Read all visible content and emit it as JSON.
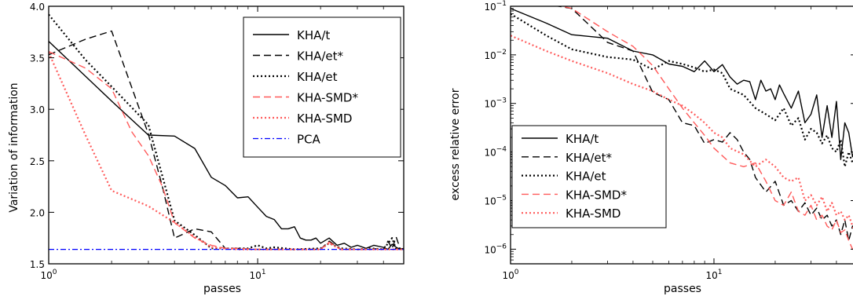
{
  "chart_data": [
    {
      "type": "line",
      "xscale": "log",
      "xlim": [
        1,
        50
      ],
      "ylim": [
        1.5,
        4.0
      ],
      "xlabel": "passes",
      "ylabel": "Variation of information",
      "xticks": [
        {
          "value": 1,
          "base": "10",
          "exp": "0"
        },
        {
          "value": 10,
          "base": "10",
          "exp": "1"
        }
      ],
      "yticks": [
        {
          "value": 1.5,
          "label": "1.5"
        },
        {
          "value": 2.0,
          "label": "2.0"
        },
        {
          "value": 2.5,
          "label": "2.5"
        },
        {
          "value": 3.0,
          "label": "3.0"
        },
        {
          "value": 3.5,
          "label": "3.5"
        },
        {
          "value": 4.0,
          "label": "4.0"
        }
      ],
      "legend_position": "top-right",
      "series": [
        {
          "name": "KHA/t",
          "color": "#000000",
          "style": "solid",
          "x": [
            1,
            2,
            3,
            4,
            5,
            6,
            7,
            8,
            9,
            10,
            11,
            12,
            13,
            14,
            15,
            16,
            17,
            18,
            19,
            20,
            22,
            24,
            26,
            28,
            30,
            33,
            36,
            40,
            42,
            44,
            46,
            48,
            50
          ],
          "y": [
            3.66,
            3.08,
            2.75,
            2.74,
            2.62,
            2.34,
            2.26,
            2.14,
            2.15,
            2.05,
            1.96,
            1.93,
            1.84,
            1.84,
            1.86,
            1.75,
            1.73,
            1.73,
            1.75,
            1.7,
            1.75,
            1.68,
            1.7,
            1.66,
            1.68,
            1.65,
            1.68,
            1.66,
            1.64,
            1.69,
            1.66,
            1.64,
            1.65
          ]
        },
        {
          "name": "KHA/et*",
          "color": "#000000",
          "style": "dashed",
          "x": [
            1,
            1.5,
            2,
            3,
            3.5,
            4,
            5,
            6,
            7,
            8,
            10,
            15,
            20,
            22,
            25,
            30,
            35,
            38,
            40,
            42,
            44,
            46,
            48,
            50
          ],
          "y": [
            3.53,
            3.68,
            3.76,
            2.76,
            2.25,
            1.75,
            1.84,
            1.81,
            1.65,
            1.65,
            1.64,
            1.64,
            1.64,
            1.72,
            1.64,
            1.64,
            1.64,
            1.65,
            1.64,
            1.72,
            1.65,
            1.76,
            1.65,
            1.64
          ]
        },
        {
          "name": "KHA/et",
          "color": "#000000",
          "style": "dotted",
          "x": [
            1,
            1.5,
            2,
            3,
            4,
            5,
            6,
            7,
            8,
            9,
            10,
            11,
            12,
            15,
            20,
            22,
            25,
            30,
            35,
            40,
            44,
            46,
            48,
            50
          ],
          "y": [
            3.92,
            3.48,
            3.22,
            2.85,
            1.92,
            1.78,
            1.65,
            1.65,
            1.65,
            1.65,
            1.68,
            1.65,
            1.66,
            1.64,
            1.65,
            1.7,
            1.65,
            1.64,
            1.65,
            1.64,
            1.75,
            1.64,
            1.65,
            1.64
          ]
        },
        {
          "name": "KHA-SMD*",
          "color": "#ff5a5a",
          "style": "dashed",
          "x": [
            1,
            1.5,
            2,
            2.5,
            3,
            3.5,
            4,
            5,
            6,
            7,
            8,
            10,
            15,
            20,
            22,
            25,
            30,
            35,
            40,
            45,
            50
          ],
          "y": [
            3.56,
            3.4,
            3.2,
            2.78,
            2.55,
            2.25,
            1.9,
            1.75,
            1.68,
            1.65,
            1.65,
            1.64,
            1.64,
            1.64,
            1.71,
            1.64,
            1.64,
            1.64,
            1.64,
            1.64,
            1.64
          ]
        },
        {
          "name": "KHA-SMD",
          "color": "#ff5a5a",
          "style": "dotted",
          "x": [
            1,
            1.5,
            2,
            3,
            4,
            5,
            6,
            7,
            8,
            10,
            15,
            20,
            22,
            25,
            30,
            40,
            50
          ],
          "y": [
            3.55,
            2.75,
            2.21,
            2.06,
            1.9,
            1.76,
            1.66,
            1.65,
            1.64,
            1.64,
            1.64,
            1.64,
            1.7,
            1.64,
            1.64,
            1.64,
            1.64
          ]
        },
        {
          "name": "PCA",
          "color": "#0000ff",
          "style": "dashdot",
          "x": [
            1,
            50
          ],
          "y": [
            1.64,
            1.64
          ]
        }
      ]
    },
    {
      "type": "line",
      "xscale": "log",
      "yscale": "log",
      "xlim": [
        1,
        50
      ],
      "ylim": [
        5e-07,
        0.1
      ],
      "xlabel": "passes",
      "ylabel": "excess relative error",
      "xticks": [
        {
          "value": 1,
          "base": "10",
          "exp": "0"
        },
        {
          "value": 10,
          "base": "10",
          "exp": "1"
        }
      ],
      "yticks": [
        {
          "value": 1e-06,
          "base": "10",
          "exp": "−6"
        },
        {
          "value": 1e-05,
          "base": "10",
          "exp": "−5"
        },
        {
          "value": 0.0001,
          "base": "10",
          "exp": "−4"
        },
        {
          "value": 0.001,
          "base": "10",
          "exp": "−3"
        },
        {
          "value": 0.01,
          "base": "10",
          "exp": "−2"
        },
        {
          "value": 0.1,
          "base": "10",
          "exp": "−1"
        }
      ],
      "legend_position": "bottom-left",
      "series": [
        {
          "name": "KHA/t",
          "color": "#000000",
          "style": "solid",
          "x": [
            1,
            1.5,
            2,
            3,
            4,
            5,
            6,
            7,
            8,
            9,
            10,
            11,
            12,
            13,
            14,
            15,
            16,
            17,
            18,
            19,
            20,
            21,
            22,
            24,
            26,
            28,
            30,
            32,
            34,
            36,
            38,
            40,
            42,
            44,
            46,
            48,
            50
          ],
          "y": [
            0.09,
            0.045,
            0.026,
            0.022,
            0.012,
            0.01,
            0.0065,
            0.0058,
            0.0045,
            0.0075,
            0.0045,
            0.0063,
            0.0035,
            0.0025,
            0.003,
            0.0028,
            0.0012,
            0.003,
            0.0018,
            0.002,
            0.0012,
            0.0024,
            0.0016,
            0.0008,
            0.0018,
            0.0004,
            0.0006,
            0.0015,
            0.0002,
            0.0009,
            0.0002,
            0.0011,
            7e-05,
            0.0004,
            0.00025,
            8e-05,
            0.00013
          ]
        },
        {
          "name": "KHA/et*",
          "color": "#000000",
          "style": "dashed",
          "x": [
            1,
            1.5,
            2,
            3,
            4,
            5,
            6,
            7,
            8,
            9,
            10,
            11,
            12,
            13,
            14,
            15,
            16,
            18,
            20,
            22,
            24,
            26,
            28,
            30,
            32,
            34,
            36,
            38,
            40,
            42,
            44,
            46,
            48,
            50
          ],
          "y": [
            0.12,
            0.11,
            0.09,
            0.018,
            0.012,
            0.0017,
            0.0012,
            0.0004,
            0.00035,
            0.00015,
            0.00018,
            0.00016,
            0.00025,
            0.00018,
            0.0001,
            7e-05,
            3e-05,
            1.5e-05,
            2.5e-05,
            8e-06,
            1e-05,
            6e-06,
            9e-06,
            5e-06,
            7e-06,
            4e-06,
            5e-06,
            3e-06,
            4e-06,
            2e-06,
            4e-06,
            1.5e-06,
            3e-06,
            2e-06
          ]
        },
        {
          "name": "KHA/et",
          "color": "#000000",
          "style": "dotted",
          "x": [
            1,
            1.5,
            2,
            3,
            4,
            5,
            6,
            7,
            8,
            9,
            10,
            11,
            12,
            14,
            16,
            18,
            20,
            22,
            24,
            26,
            28,
            30,
            32,
            34,
            36,
            38,
            40,
            42,
            44,
            46,
            48,
            50
          ],
          "y": [
            0.07,
            0.025,
            0.013,
            0.009,
            0.008,
            0.005,
            0.0075,
            0.0065,
            0.0055,
            0.0045,
            0.005,
            0.0042,
            0.002,
            0.0015,
            0.0008,
            0.0006,
            0.00045,
            0.0008,
            0.00035,
            0.0005,
            0.00018,
            0.0003,
            0.00025,
            0.00015,
            0.00022,
            0.00012,
            0.0001,
            0.00018,
            5e-05,
            0.0001,
            6e-05,
            8e-05
          ]
        },
        {
          "name": "KHA-SMD*",
          "color": "#ff5a5a",
          "style": "dashed",
          "x": [
            1,
            1.5,
            2,
            3,
            4,
            5,
            6,
            7,
            8,
            9,
            10,
            12,
            14,
            16,
            18,
            20,
            22,
            24,
            26,
            28,
            30,
            32,
            34,
            36,
            38,
            40,
            42,
            44,
            46,
            48,
            50
          ],
          "y": [
            0.15,
            0.12,
            0.09,
            0.03,
            0.015,
            0.006,
            0.002,
            0.0008,
            0.0004,
            0.00022,
            0.00012,
            6e-05,
            5e-05,
            6e-05,
            2.5e-05,
            1e-05,
            8e-06,
            1.5e-05,
            6e-06,
            5e-06,
            8e-06,
            4e-06,
            5e-06,
            3e-06,
            2.5e-06,
            4e-06,
            2.2e-06,
            2.5e-06,
            1.5e-06,
            1e-06,
            1e-06
          ]
        },
        {
          "name": "KHA-SMD",
          "color": "#ff5a5a",
          "style": "dotted",
          "x": [
            1,
            1.5,
            2,
            3,
            4,
            5,
            6,
            7,
            8,
            9,
            10,
            11,
            12,
            14,
            16,
            18,
            20,
            22,
            24,
            26,
            28,
            30,
            32,
            34,
            36,
            38,
            40,
            42,
            44,
            46,
            48,
            50
          ],
          "y": [
            0.025,
            0.012,
            0.0075,
            0.0042,
            0.0025,
            0.0018,
            0.0012,
            0.0009,
            0.0006,
            0.0004,
            0.00025,
            0.0002,
            0.00012,
            9e-05,
            5e-05,
            7e-05,
            5e-05,
            3e-05,
            2.5e-05,
            3e-05,
            1e-05,
            1.3e-05,
            8e-06,
            1.2e-05,
            6e-06,
            9e-06,
            5e-06,
            6e-06,
            4e-06,
            5e-06,
            3e-06,
            2e-06
          ]
        }
      ]
    }
  ]
}
